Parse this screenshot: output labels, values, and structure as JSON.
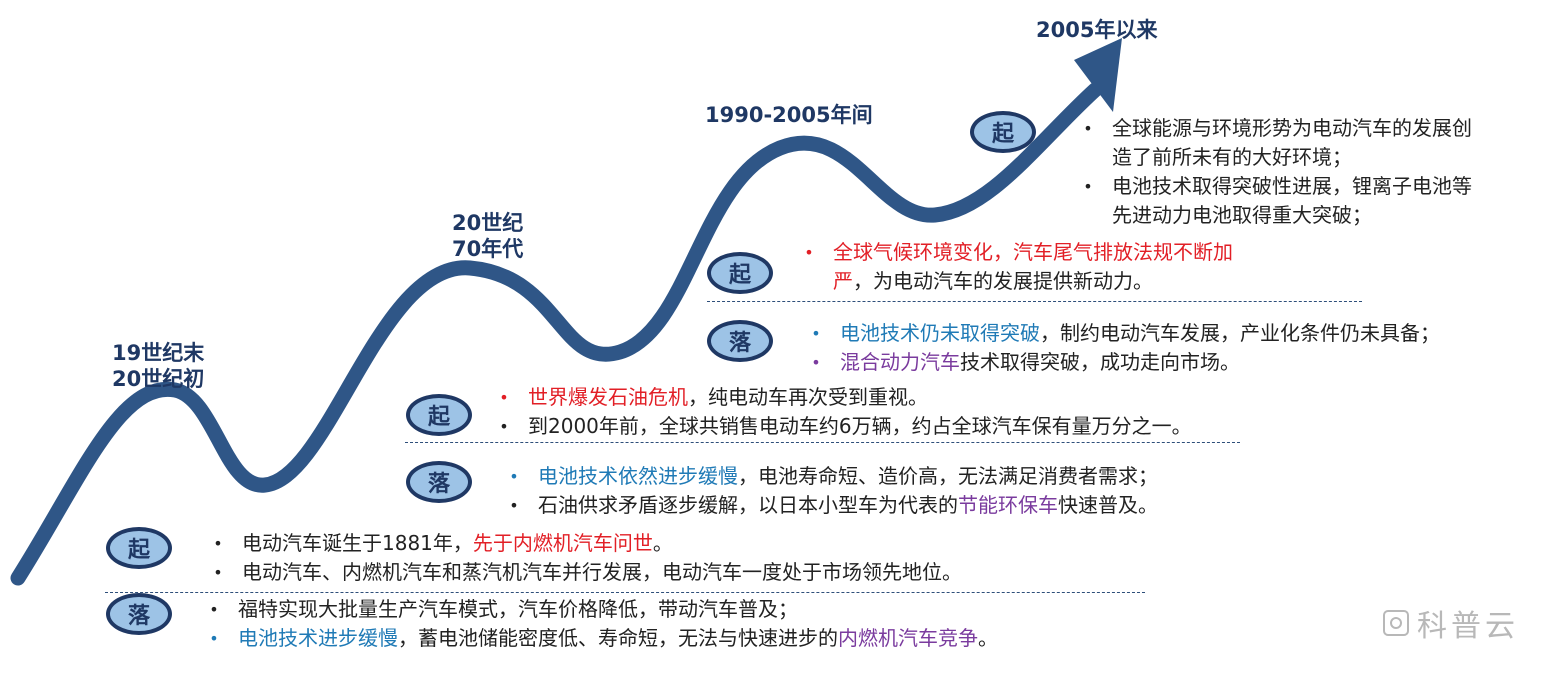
{
  "eras": {
    "e1": [
      "19世纪末",
      "20世纪初"
    ],
    "e2": [
      "20世纪",
      "70年代"
    ],
    "e3": "1990-2005年间",
    "e4": "2005年以来"
  },
  "badges": {
    "rise": "起",
    "fall": "落"
  },
  "stage1": {
    "rise": [
      [
        "电动汽车诞生于1881年，",
        "先于内燃机汽车问世",
        "。"
      ],
      [
        "电动汽车、内燃机汽车和蒸汽机汽车并行发展，电动汽车一度处于市场领先地位。"
      ]
    ],
    "fall": [
      [
        "福特实现大批量生产汽车模式，汽车价格降低，带动汽车普及；"
      ],
      [
        "电池技术进步缓慢",
        "，蓄电池储能密度低、寿命短，无法与快速进步的",
        "内燃机汽车竞争",
        "。"
      ]
    ]
  },
  "stage2": {
    "rise": [
      [
        "世界爆发石油危机",
        "，纯电动车再次受到重视。"
      ],
      [
        "到2000年前，全球共销售电动车约6万辆，约占全球汽车保有量万分之一。"
      ]
    ],
    "fall": [
      [
        "电池技术依然进步缓慢",
        "，电池寿命短、造价高，无法满足消费者需求；"
      ],
      [
        "石油供求矛盾逐步缓解，以日本小型车为代表的",
        "节能环保车",
        "快速普及。"
      ]
    ]
  },
  "stage3": {
    "rise": [
      [
        "全球气候环境变化，汽车尾气排放法规不断加"
      ],
      [
        "严",
        "，为电动汽车的发展提供新动力。"
      ]
    ],
    "fall": [
      [
        "电池技术仍未取得突破",
        "，制约电动汽车发展，产业化条件仍未具备；"
      ],
      [
        "混合动力汽车",
        "技术取得突破，成功走向市场。"
      ]
    ]
  },
  "stage4": {
    "rise": [
      [
        "全球能源与环境形势为电动汽车的发展创"
      ],
      [
        "造了前所未有的大好环境；"
      ],
      [
        "电池技术取得突破性进展，锂离子电池等"
      ],
      [
        "先进动力电池取得重大突破；"
      ]
    ]
  },
  "bullet": "•",
  "watermark": "科普云",
  "colors": {
    "navy": "#1f3864",
    "wave": "#2f5687",
    "badge_fill": "#9dc3e6",
    "red": "#e21f26",
    "blue": "#1f7ab6",
    "purple": "#7a3b9e"
  }
}
